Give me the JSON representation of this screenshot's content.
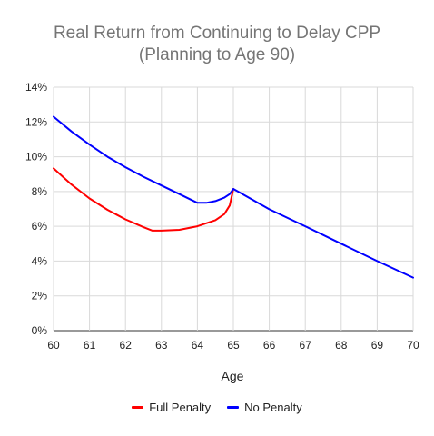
{
  "chart_data": {
    "type": "line",
    "title_line1": "Real Return from Continuing to Delay CPP",
    "title_line2": "(Planning to Age 90)",
    "xlabel": "Age",
    "ylabel": "",
    "xlim": [
      60,
      70
    ],
    "ylim": [
      0,
      14
    ],
    "x_ticks": [
      "60",
      "61",
      "62",
      "63",
      "64",
      "65",
      "66",
      "67",
      "68",
      "69",
      "70"
    ],
    "y_ticks": [
      "0%",
      "2%",
      "4%",
      "6%",
      "8%",
      "10%",
      "12%",
      "14%"
    ],
    "grid": true,
    "legend_position": "bottom",
    "series": [
      {
        "name": "Full Penalty",
        "color": "#ff0000",
        "points": [
          [
            60,
            9.33
          ],
          [
            60.5,
            8.4
          ],
          [
            61,
            7.6
          ],
          [
            61.5,
            6.95
          ],
          [
            62,
            6.4
          ],
          [
            62.5,
            5.95
          ],
          [
            62.75,
            5.75
          ],
          [
            63,
            5.75
          ],
          [
            63.5,
            5.8
          ],
          [
            64,
            6.0
          ],
          [
            64.5,
            6.35
          ],
          [
            64.75,
            6.7
          ],
          [
            64.9,
            7.2
          ],
          [
            65,
            8.15
          ]
        ]
      },
      {
        "name": "No Penalty",
        "color": "#0000ff",
        "points": [
          [
            60,
            12.3
          ],
          [
            60.5,
            11.45
          ],
          [
            61,
            10.7
          ],
          [
            61.5,
            10.0
          ],
          [
            62,
            9.4
          ],
          [
            62.5,
            8.85
          ],
          [
            63,
            8.35
          ],
          [
            63.5,
            7.85
          ],
          [
            64,
            7.35
          ],
          [
            64.25,
            7.35
          ],
          [
            64.5,
            7.45
          ],
          [
            64.75,
            7.65
          ],
          [
            64.9,
            7.85
          ],
          [
            65,
            8.15
          ],
          [
            66,
            6.98
          ],
          [
            67,
            6.0
          ],
          [
            68,
            5.0
          ],
          [
            69,
            4.0
          ],
          [
            70,
            3.05
          ]
        ]
      }
    ]
  }
}
